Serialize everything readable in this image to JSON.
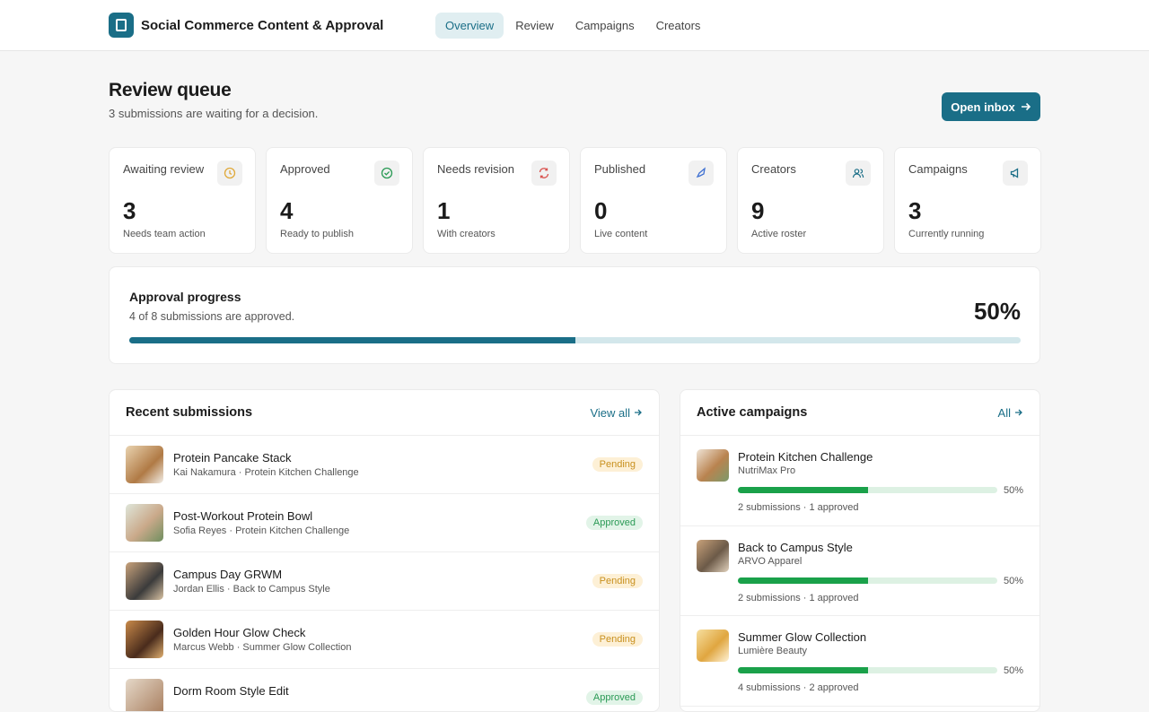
{
  "header": {
    "app_title": "Social Commerce Content & Approval",
    "nav": [
      "Overview",
      "Review",
      "Campaigns",
      "Creators"
    ]
  },
  "page": {
    "title": "Review queue",
    "subtitle": "3 submissions are waiting for a decision.",
    "action": "Open inbox"
  },
  "stats": [
    {
      "label": "Awaiting review",
      "value": 3,
      "note": "Needs team action",
      "color": "#e0a93a"
    },
    {
      "label": "Approved",
      "value": 4,
      "note": "Ready to publish",
      "color": "#2a9a55"
    },
    {
      "label": "Needs revision",
      "value": 1,
      "note": "With creators",
      "color": "#d9534f"
    },
    {
      "label": "Published",
      "value": 0,
      "note": "Live content",
      "color": "#3d6fd1"
    },
    {
      "label": "Creators",
      "value": 9,
      "note": "Active roster",
      "color": "#1a6e87"
    },
    {
      "label": "Campaigns",
      "value": 3,
      "note": "Currently running",
      "color": "#1a6e87"
    }
  ],
  "progress": {
    "title": "Approval progress",
    "subtitle": "4 of 8 submissions are approved.",
    "percent": {
      "value": 50,
      "label": "50%"
    }
  },
  "submissions": {
    "title": "Recent submissions",
    "link": "View all",
    "items": [
      {
        "title": "Protein Pancake Stack",
        "meta": "Kai Nakamura · Protein Kitchen Challenge",
        "status": "Pending",
        "status_color": "#c8901e",
        "status_bg": "#fdf0d6"
      },
      {
        "title": "Post-Workout Protein Bowl",
        "meta": "Sofia Reyes · Protein Kitchen Challenge",
        "status": "Approved",
        "status_color": "#2a9a55",
        "status_bg": "#e2f4e8"
      },
      {
        "title": "Campus Day GRWM",
        "meta": "Jordan Ellis · Back to Campus Style",
        "status": "Pending",
        "status_color": "#c8901e",
        "status_bg": "#fdf0d6"
      },
      {
        "title": "Golden Hour Glow Check",
        "meta": "Marcus Webb · Summer Glow Collection",
        "status": "Pending",
        "status_color": "#c8901e",
        "status_bg": "#fdf0d6"
      },
      {
        "title": "Dorm Room Style Edit",
        "meta": "",
        "status": "Approved",
        "status_color": "#2a9a55",
        "status_bg": "#e2f4e8"
      }
    ]
  },
  "campaigns": {
    "title": "Active campaigns",
    "link": "All",
    "items": [
      {
        "name": "Protein Kitchen Challenge",
        "brand": "NutriMax Pro",
        "percent": {
          "value": 50,
          "label": "50%"
        },
        "stats": "2 submissions · 1 approved"
      },
      {
        "name": "Back to Campus Style",
        "brand": "ARVO Apparel",
        "percent": {
          "value": 50,
          "label": "50%"
        },
        "stats": "2 submissions · 1 approved"
      },
      {
        "name": "Summer Glow Collection",
        "brand": "Lumière Beauty",
        "percent": {
          "value": 50,
          "label": "50%"
        },
        "stats": "4 submissions · 2 approved"
      }
    ]
  }
}
